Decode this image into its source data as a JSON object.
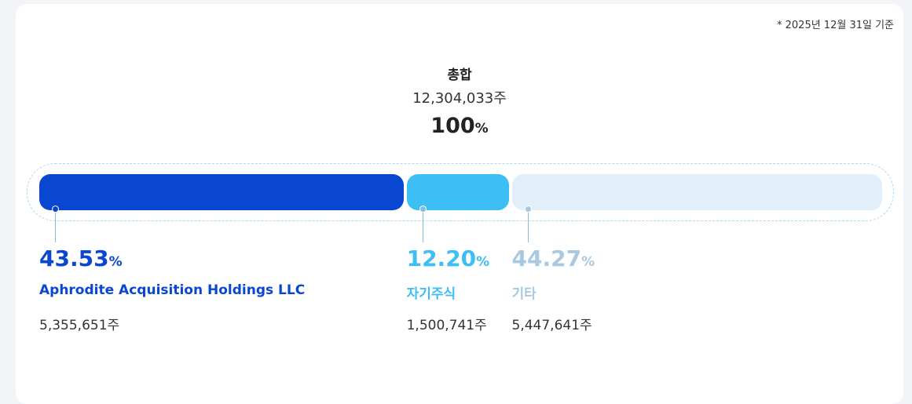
{
  "chart_data": {
    "type": "stacked-bar",
    "note": "* 2025년 12월 31일 기준",
    "title": "총합",
    "total": "12,304,033주",
    "total_percent": 100,
    "unit": "%",
    "categories": [
      "Aphrodite Acquisition Holdings LLC",
      "자기주식",
      "기타"
    ],
    "values": [
      43.53,
      12.2,
      44.27
    ],
    "value_labels": [
      "43.53",
      "12.20",
      "44.27"
    ],
    "shares": [
      "5,355,651주",
      "1,500,741주",
      "5,447,641주"
    ],
    "colors": [
      "#0a47d1",
      "#3dbff5",
      "#e2eef8"
    ],
    "text_colors": [
      "#0a47d1",
      "#3dbff5",
      "#a9c9e0"
    ]
  }
}
